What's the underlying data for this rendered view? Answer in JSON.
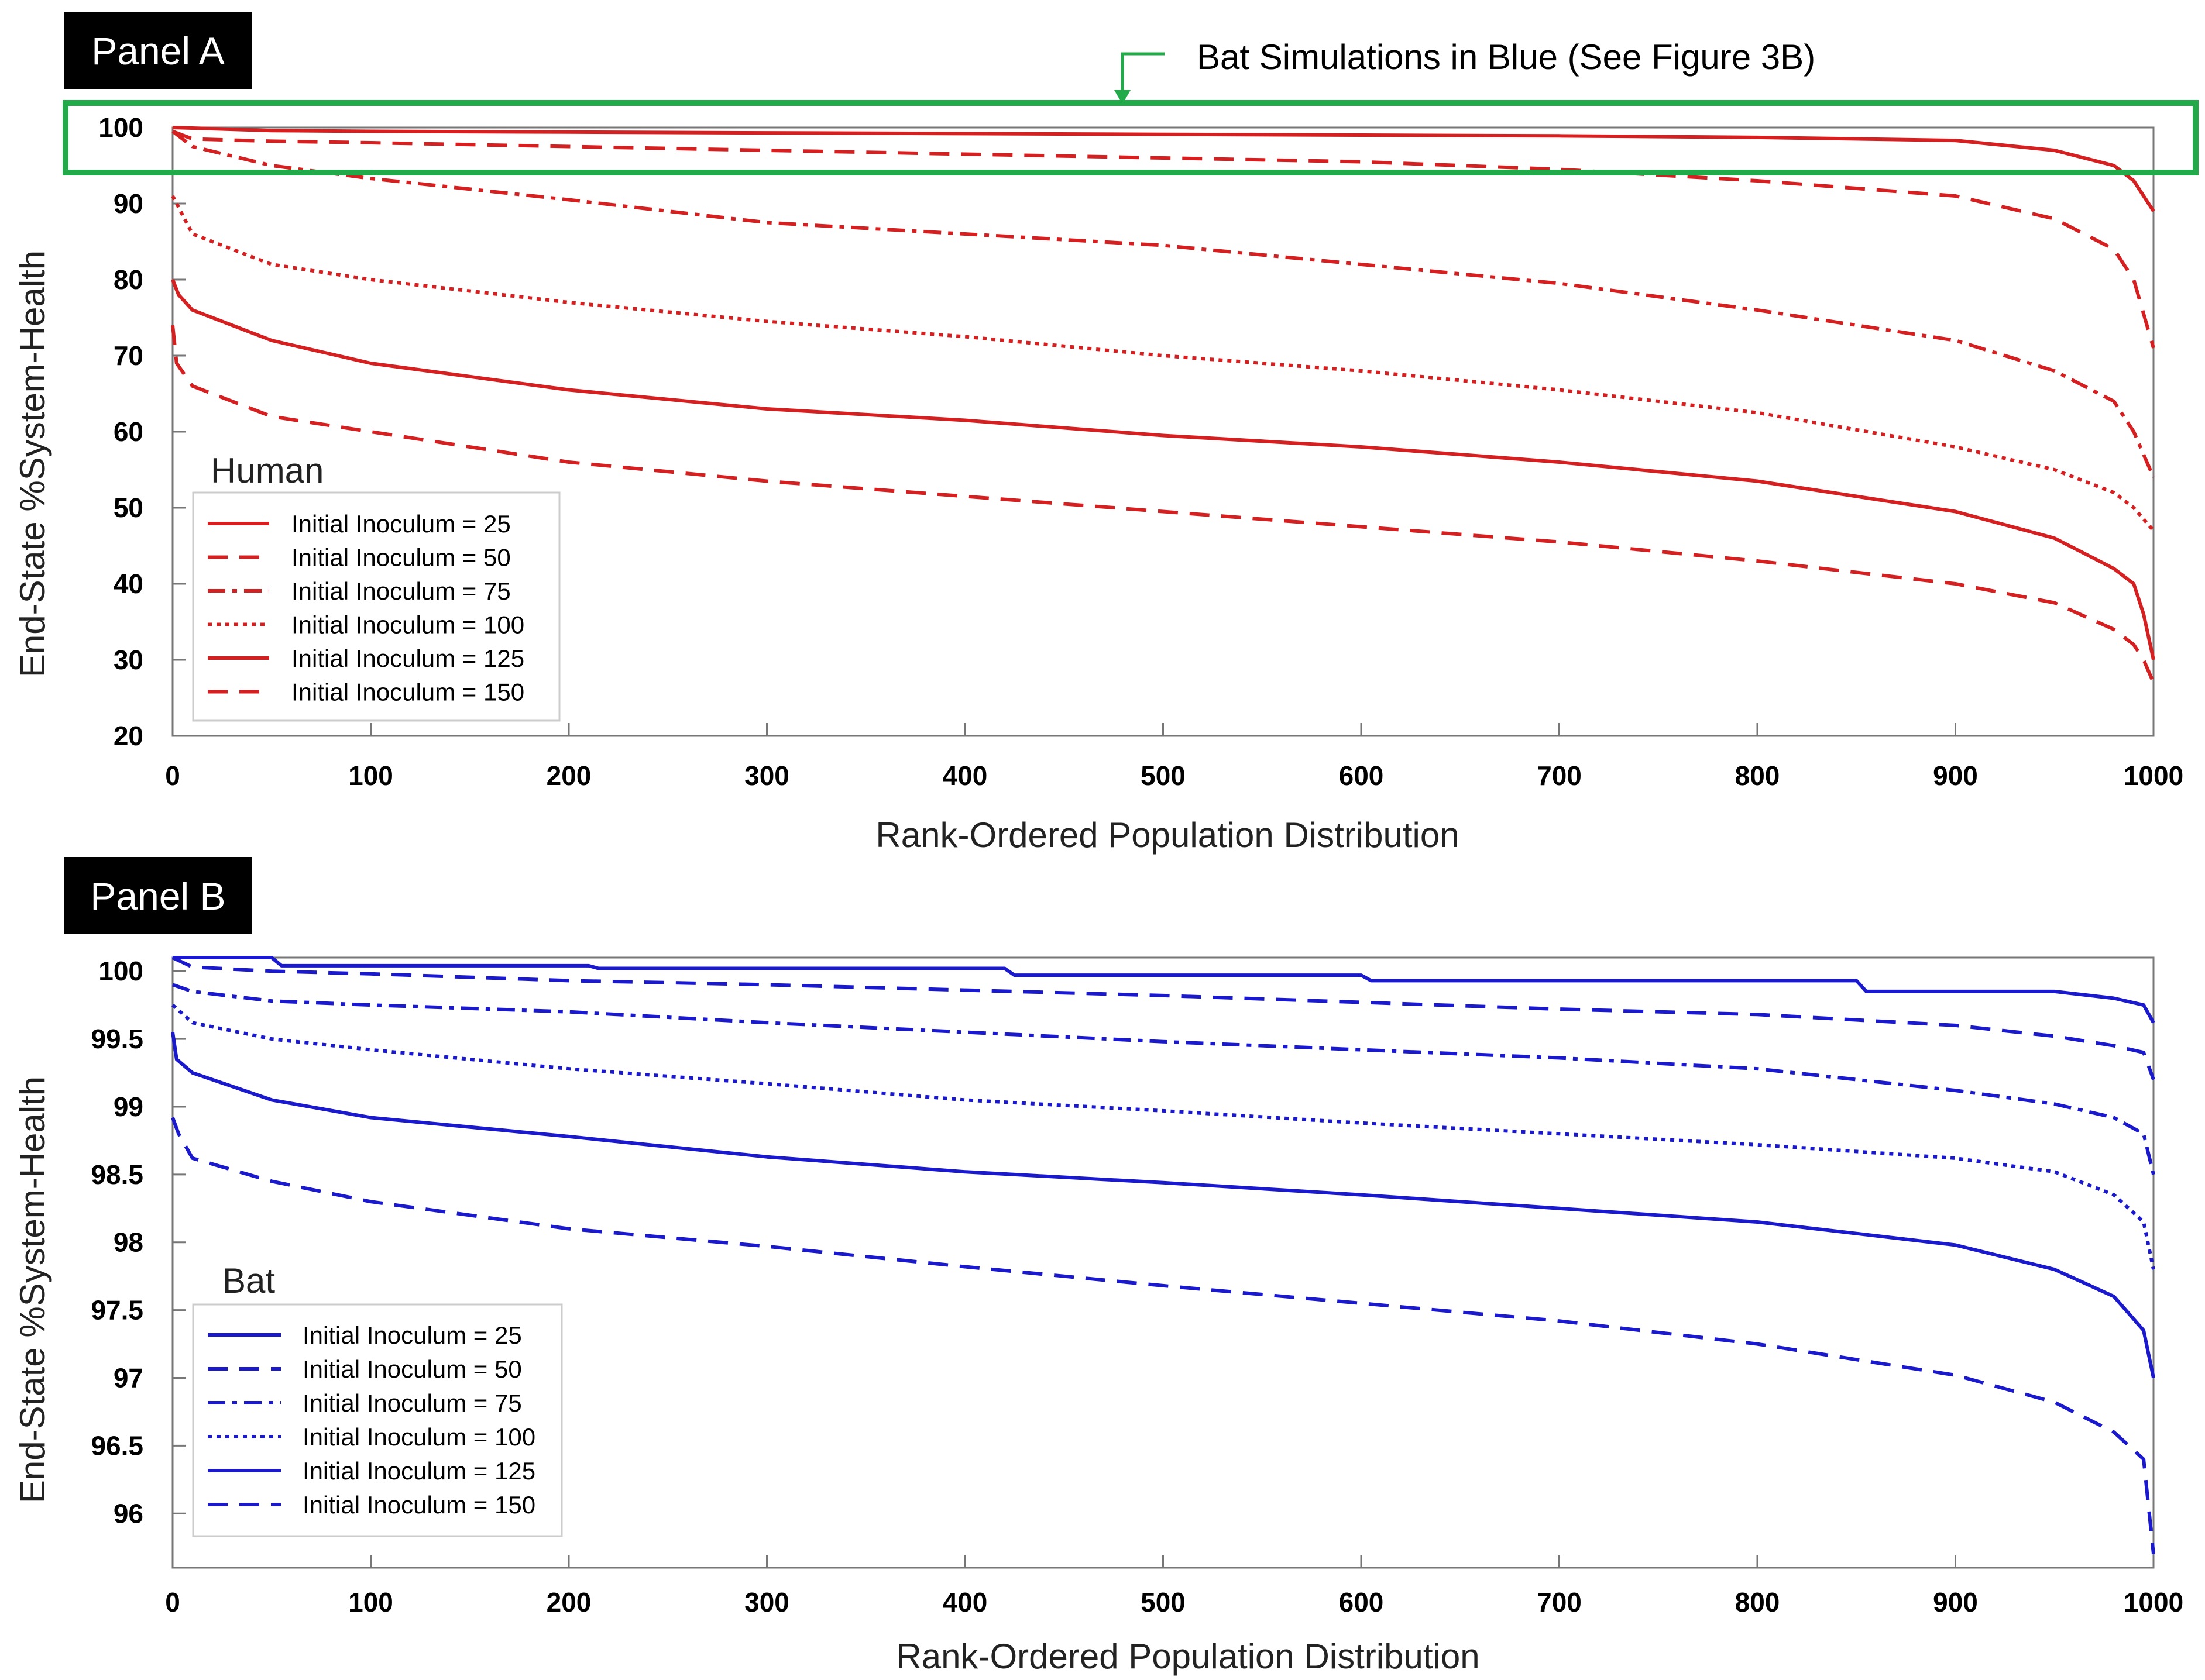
{
  "annotation": {
    "text": "Bat Simulations in Blue (See Figure 3B)",
    "color": "#22aa4a"
  },
  "chart_data": [
    {
      "type": "line",
      "panel_label": "Panel A",
      "species_label": "Human",
      "xlabel": "Rank-Ordered Population Distribution",
      "ylabel": "End-State %System-Health",
      "xlim": [
        0,
        1000
      ],
      "ylim": [
        20,
        100
      ],
      "xticks": [
        0,
        100,
        200,
        300,
        400,
        500,
        600,
        700,
        800,
        900,
        1000
      ],
      "yticks": [
        20,
        30,
        40,
        50,
        60,
        70,
        80,
        90,
        100
      ],
      "color": "#d42020",
      "series": [
        {
          "name": "Initial Inoculum = 25",
          "style": "solid",
          "x": [
            0,
            50,
            100,
            200,
            300,
            400,
            500,
            600,
            700,
            800,
            900,
            950,
            980,
            990,
            1000
          ],
          "y": [
            100,
            99.6,
            99.5,
            99.4,
            99.3,
            99.2,
            99.1,
            99,
            98.9,
            98.7,
            98.3,
            97,
            95,
            93,
            89
          ]
        },
        {
          "name": "Initial Inoculum = 50",
          "style": "dashed",
          "x": [
            0,
            10,
            50,
            100,
            200,
            300,
            400,
            500,
            600,
            700,
            800,
            900,
            950,
            980,
            990,
            1000
          ],
          "y": [
            99.5,
            98.5,
            98.2,
            98,
            97.5,
            97,
            96.5,
            96,
            95.5,
            94.5,
            93,
            91,
            88,
            84,
            80,
            71
          ]
        },
        {
          "name": "Initial Inoculum = 75",
          "style": "dashdot",
          "x": [
            0,
            10,
            50,
            100,
            200,
            300,
            400,
            500,
            600,
            700,
            800,
            900,
            950,
            980,
            990,
            1000
          ],
          "y": [
            99.5,
            97.5,
            95,
            93.3,
            90.5,
            87.5,
            86,
            84.5,
            82,
            79.5,
            76,
            72,
            68,
            64,
            60,
            54
          ]
        },
        {
          "name": "Initial Inoculum = 100",
          "style": "dotted",
          "x": [
            0,
            10,
            30,
            50,
            100,
            200,
            300,
            400,
            500,
            600,
            700,
            800,
            900,
            950,
            980,
            990,
            1000
          ],
          "y": [
            91,
            86,
            84,
            82,
            80,
            77,
            74.5,
            72.5,
            70,
            68,
            65.5,
            62.5,
            58,
            55,
            52,
            50,
            47
          ]
        },
        {
          "name": "Initial Inoculum = 125",
          "style": "solid",
          "x": [
            0,
            3,
            10,
            50,
            100,
            200,
            300,
            400,
            500,
            600,
            700,
            800,
            900,
            950,
            980,
            990,
            995,
            1000
          ],
          "y": [
            80,
            78,
            76,
            72,
            69,
            65.5,
            63,
            61.5,
            59.5,
            58,
            56,
            53.5,
            49.5,
            46,
            42,
            40,
            36,
            30
          ]
        },
        {
          "name": "Initial Inoculum = 150",
          "style": "dashed",
          "x": [
            0,
            2,
            10,
            50,
            100,
            200,
            300,
            400,
            500,
            600,
            700,
            800,
            900,
            950,
            980,
            990,
            995,
            1000
          ],
          "y": [
            74,
            69,
            66,
            62,
            60,
            56,
            53.5,
            51.5,
            49.5,
            47.5,
            45.5,
            43,
            40,
            37.5,
            34,
            32,
            30,
            27
          ]
        }
      ]
    },
    {
      "type": "line",
      "panel_label": "Panel B",
      "species_label": "Bat",
      "xlabel": "Rank-Ordered Population Distribution",
      "ylabel": "End-State %System-Health",
      "xlim": [
        0,
        1000
      ],
      "ylim": [
        95.6,
        100.1
      ],
      "xticks": [
        0,
        100,
        200,
        300,
        400,
        500,
        600,
        700,
        800,
        900,
        1000
      ],
      "yticks": [
        96,
        96.5,
        97,
        97.5,
        98,
        98.5,
        99,
        99.5,
        100
      ],
      "yticklabels": [
        "96",
        "96.5",
        "97",
        "97.5",
        "98",
        "98.5",
        "99",
        "99.5",
        "100"
      ],
      "color": "#1a1acc",
      "series": [
        {
          "name": "Initial Inoculum = 25",
          "style": "solid",
          "x": [
            0,
            50,
            55,
            210,
            215,
            420,
            425,
            600,
            605,
            850,
            855,
            950,
            980,
            995,
            1000
          ],
          "y": [
            100.1,
            100.1,
            100.04,
            100.04,
            100.02,
            100.02,
            99.97,
            99.97,
            99.93,
            99.93,
            99.85,
            99.85,
            99.8,
            99.75,
            99.62
          ]
        },
        {
          "name": "Initial Inoculum = 50",
          "style": "dashed",
          "x": [
            0,
            10,
            50,
            100,
            200,
            300,
            400,
            500,
            600,
            700,
            800,
            900,
            950,
            980,
            995,
            1000
          ],
          "y": [
            100.1,
            100.03,
            100,
            99.98,
            99.93,
            99.9,
            99.86,
            99.82,
            99.77,
            99.72,
            99.68,
            99.6,
            99.52,
            99.45,
            99.4,
            99.2
          ]
        },
        {
          "name": "Initial Inoculum = 75",
          "style": "dashdot",
          "x": [
            0,
            10,
            50,
            100,
            200,
            300,
            400,
            500,
            600,
            700,
            800,
            900,
            950,
            980,
            995,
            1000
          ],
          "y": [
            99.9,
            99.85,
            99.78,
            99.75,
            99.7,
            99.62,
            99.55,
            99.48,
            99.42,
            99.36,
            99.28,
            99.12,
            99.02,
            98.92,
            98.8,
            98.5
          ]
        },
        {
          "name": "Initial Inoculum = 100",
          "style": "dotted",
          "x": [
            0,
            10,
            50,
            100,
            200,
            300,
            400,
            500,
            600,
            700,
            800,
            900,
            950,
            980,
            995,
            1000
          ],
          "y": [
            99.75,
            99.62,
            99.5,
            99.42,
            99.28,
            99.17,
            99.05,
            98.97,
            98.88,
            98.8,
            98.72,
            98.62,
            98.52,
            98.35,
            98.15,
            97.8
          ]
        },
        {
          "name": "Initial Inoculum = 125",
          "style": "solid",
          "x": [
            0,
            2,
            10,
            50,
            100,
            200,
            300,
            400,
            500,
            600,
            700,
            800,
            900,
            950,
            980,
            995,
            1000
          ],
          "y": [
            99.55,
            99.35,
            99.25,
            99.05,
            98.92,
            98.78,
            98.63,
            98.52,
            98.44,
            98.35,
            98.25,
            98.15,
            97.98,
            97.8,
            97.6,
            97.35,
            97.0
          ]
        },
        {
          "name": "Initial Inoculum = 150",
          "style": "dashed",
          "x": [
            0,
            3,
            10,
            50,
            100,
            200,
            300,
            400,
            500,
            600,
            700,
            800,
            900,
            950,
            980,
            995,
            1000
          ],
          "y": [
            98.92,
            98.8,
            98.62,
            98.45,
            98.3,
            98.1,
            97.97,
            97.82,
            97.68,
            97.55,
            97.42,
            97.25,
            97.02,
            96.82,
            96.6,
            96.4,
            95.7
          ]
        }
      ]
    }
  ]
}
